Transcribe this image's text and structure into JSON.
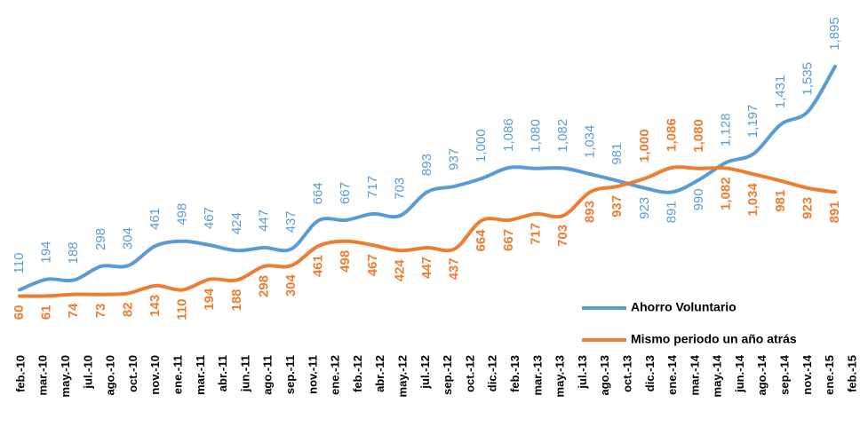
{
  "chart_data": {
    "type": "line",
    "xticks": [
      "feb.-10",
      "mar.-10",
      "may.-10",
      "jul.-10",
      "ago.-10",
      "oct.-10",
      "nov.-10",
      "ene.-11",
      "mar.-11",
      "abr.-11",
      "jun.-11",
      "ago.-11",
      "sep.-11",
      "nov.-11",
      "ene.-12",
      "feb.-12",
      "abr.-12",
      "may.-12",
      "jul.-12",
      "sep.-12",
      "oct.-12",
      "dic.-12",
      "feb.-13",
      "mar.-13",
      "may.-13",
      "jul.-13",
      "ago.-13",
      "oct.-13",
      "dic.-13",
      "ene.-14",
      "mar.-14",
      "may.-14",
      "jun.-14",
      "ago.-14",
      "sep.-14",
      "nov.-14",
      "ene.-15",
      "feb.-15"
    ],
    "ylim": [
      0,
      2000
    ],
    "legend": "right",
    "series": [
      {
        "name": "Ahorro Voluntario",
        "color": "#5b9bd5",
        "values": [
          110,
          194,
          188,
          298,
          304,
          461,
          498,
          467,
          424,
          447,
          437,
          664,
          667,
          717,
          703,
          893,
          937,
          1000,
          1086,
          1080,
          1082,
          1034,
          981,
          923,
          891,
          990,
          1128,
          1197,
          1431,
          1535,
          1895
        ],
        "value_labels": [
          "110",
          "194",
          "188",
          "298",
          "304",
          "461",
          "498",
          "467",
          "424",
          "447",
          "437",
          "664",
          "667",
          "717",
          "703",
          "893",
          "937",
          "1,000",
          "1,086",
          "1,080",
          "1,082",
          "1,034",
          "981",
          "923",
          "891",
          "990",
          "1,128",
          "1,197",
          "1,431",
          "1,535",
          "1,895"
        ]
      },
      {
        "name": "Mismo periodo un año atrás",
        "color": "#ed7d31",
        "values": [
          60,
          61,
          74,
          73,
          82,
          143,
          110,
          194,
          188,
          298,
          304,
          461,
          498,
          467,
          424,
          447,
          437,
          664,
          667,
          717,
          703,
          893,
          937,
          1000,
          1086,
          1080,
          1082,
          1034,
          981,
          923,
          891
        ],
        "value_labels": [
          "60",
          "61",
          "74",
          "73",
          "82",
          "143",
          "110",
          "194",
          "188",
          "298",
          "304",
          "461",
          "498",
          "467",
          "424",
          "447",
          "437",
          "664",
          "667",
          "717",
          "703",
          "893",
          "937",
          "1,000",
          "1,086",
          "1,080",
          "1,082",
          "1,034",
          "981",
          "923",
          "891"
        ]
      }
    ]
  }
}
